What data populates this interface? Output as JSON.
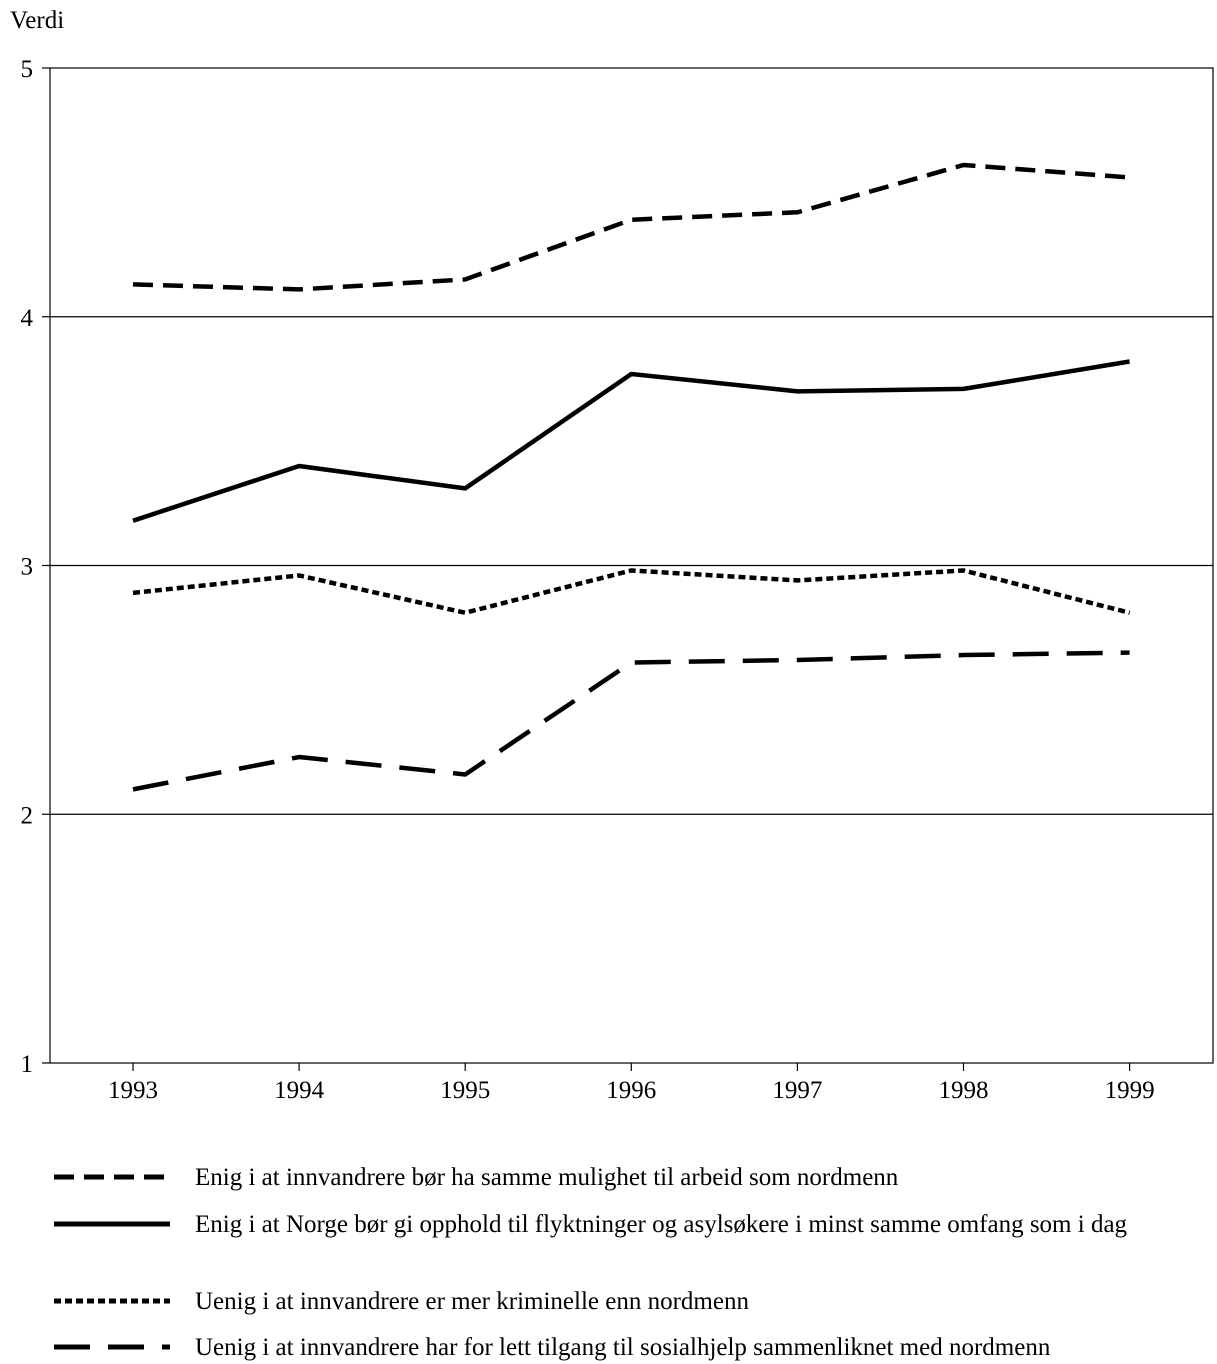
{
  "chart_data": {
    "type": "line",
    "ylabel": "Verdi",
    "xlabel": "",
    "x": [
      "1993",
      "1994",
      "1995",
      "1996",
      "1997",
      "1998",
      "1999"
    ],
    "ylim": [
      1,
      5
    ],
    "yticks": [
      "1",
      "2",
      "3",
      "4",
      "5"
    ],
    "grid": "horizontal at 2, 3, 4",
    "legend_position": "bottom",
    "series": [
      {
        "name": "Enig i at innvandrere bør ha samme mulighet til arbeid som nordmenn",
        "style": "short-dash",
        "values": [
          4.13,
          4.11,
          4.15,
          4.39,
          4.42,
          4.61,
          4.56
        ]
      },
      {
        "name": "Enig i at Norge bør gi opphold til flyktninger og asylsøkere i minst samme omfang som i dag",
        "style": "solid",
        "values": [
          3.18,
          3.4,
          3.31,
          3.77,
          3.7,
          3.71,
          3.82
        ]
      },
      {
        "name": "Uenig i at innvandrere er mer kriminelle enn nordmenn",
        "style": "dotted",
        "values": [
          2.89,
          2.96,
          2.81,
          2.98,
          2.94,
          2.98,
          2.81
        ]
      },
      {
        "name": "Uenig i at innvandrere  har for lett tilgang til sosialhjelp sammenliknet med nordmenn",
        "style": "long-dash",
        "values": [
          2.1,
          2.23,
          2.16,
          2.61,
          2.62,
          2.64,
          2.65
        ]
      }
    ]
  }
}
